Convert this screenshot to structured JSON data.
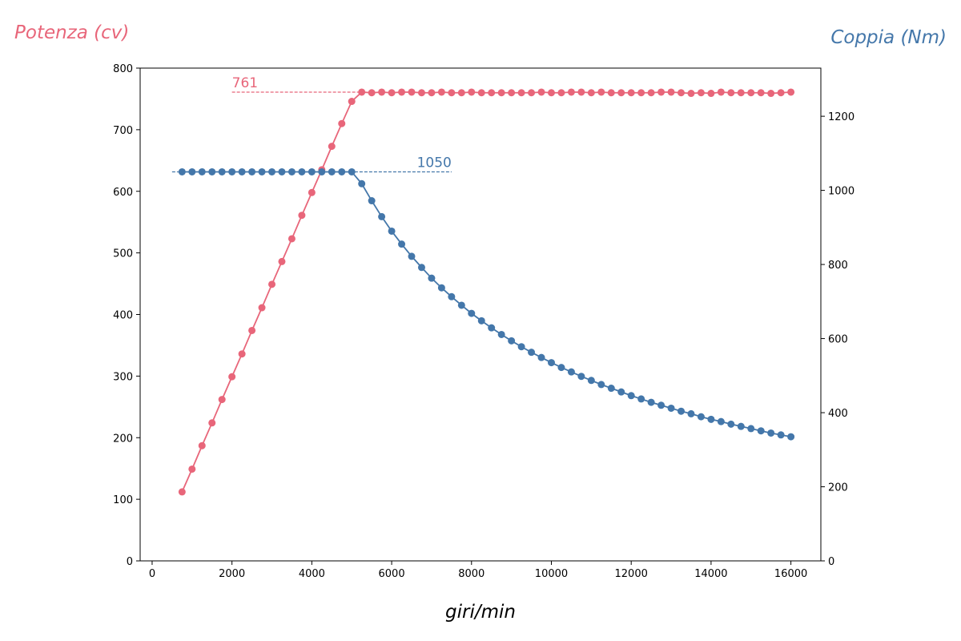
{
  "chart_data": {
    "type": "line",
    "xlabel": "giri/min",
    "ylabel_left": "Potenza (cv)",
    "ylabel_right": "Coppia (Nm)",
    "xlim": [
      -300,
      16750
    ],
    "ylim_left": [
      0,
      800
    ],
    "ylim_right": [
      0,
      1330
    ],
    "xticks": [
      0,
      2000,
      4000,
      6000,
      8000,
      10000,
      12000,
      14000,
      16000
    ],
    "yticks_left": [
      0,
      100,
      200,
      300,
      400,
      500,
      600,
      700,
      800
    ],
    "yticks_right": [
      0,
      200,
      400,
      600,
      800,
      1000,
      1200
    ],
    "grid": false,
    "colors": {
      "power": "#e8667a",
      "torque": "#4477aa"
    },
    "x": [
      750,
      1000,
      1250,
      1500,
      1750,
      2000,
      2250,
      2500,
      2750,
      3000,
      3250,
      3500,
      3750,
      4000,
      4250,
      4500,
      4750,
      5000,
      5250,
      5500,
      5750,
      6000,
      6250,
      6500,
      6750,
      7000,
      7250,
      7500,
      7750,
      8000,
      8250,
      8500,
      8750,
      9000,
      9250,
      9500,
      9750,
      10000,
      10250,
      10500,
      10750,
      11000,
      11250,
      11500,
      11750,
      12000,
      12250,
      12500,
      12750,
      13000,
      13250,
      13500,
      13750,
      14000,
      14250,
      14500,
      14750,
      15000,
      15250,
      15500,
      15750,
      16000
    ],
    "series": [
      {
        "name": "Potenza (cv)",
        "axis": "left",
        "color": "#e8667a",
        "values": [
          112,
          149,
          187,
          224,
          262,
          299,
          336,
          374,
          411,
          449,
          486,
          523,
          561,
          598,
          635,
          673,
          710,
          746,
          761,
          760,
          761,
          760,
          761,
          761,
          760,
          760,
          761,
          760,
          760,
          761,
          760,
          760,
          760,
          760,
          760,
          760,
          761,
          760,
          760,
          761,
          761,
          760,
          761,
          760,
          760,
          760,
          760,
          760,
          761,
          761,
          760,
          759,
          760,
          759,
          761,
          760,
          760,
          760,
          760,
          759,
          760,
          761
        ]
      },
      {
        "name": "Coppia (Nm)",
        "axis": "right",
        "color": "#4477aa",
        "values": [
          1050,
          1050,
          1050,
          1050,
          1050,
          1050,
          1050,
          1050,
          1050,
          1050,
          1050,
          1050,
          1050,
          1050,
          1050,
          1050,
          1050,
          1050,
          1018,
          972,
          929,
          890,
          855,
          822,
          792,
          763,
          737,
          713,
          690,
          668,
          648,
          629,
          611,
          594,
          578,
          563,
          549,
          535,
          522,
          510,
          498,
          487,
          476,
          466,
          456,
          446,
          437,
          428,
          420,
          412,
          404,
          397,
          389,
          382,
          376,
          369,
          363,
          357,
          351,
          345,
          340,
          335
        ]
      }
    ],
    "annotations": [
      {
        "text": "761",
        "series": "Potenza (cv)",
        "value": 761,
        "x_from": 2000,
        "x_to": 5250,
        "color": "#e8667a"
      },
      {
        "text": "1050",
        "series": "Coppia (Nm)",
        "value": 1050,
        "x_from": 500,
        "x_to": 7500,
        "color": "#4477aa"
      }
    ]
  }
}
